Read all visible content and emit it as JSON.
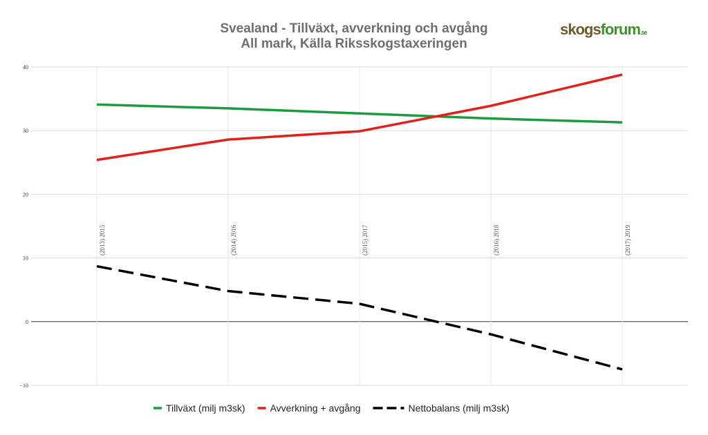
{
  "chart_data": {
    "type": "line",
    "title": "Svealand - Tillväxt, avverkning och avgång",
    "subtitle": "All mark, Källa Riksskogstaxeringen",
    "logo": [
      "skogs",
      "forum",
      ".se"
    ],
    "categories": [
      "(2013) 2015",
      "(2014) 2016",
      "(2015) 2017",
      "(2016) 2018",
      "(2017) 2019"
    ],
    "series": [
      {
        "name": "Tillväxt (milj m3sk)",
        "color": "#1e9a40",
        "dash": false,
        "values": [
          34.1,
          33.5,
          32.7,
          31.9,
          31.3
        ]
      },
      {
        "name": "Avverkning + avgång",
        "color": "#e0211c",
        "dash": false,
        "values": [
          25.4,
          28.6,
          29.9,
          33.9,
          38.8
        ]
      },
      {
        "name": "Nettobalans (milj m3sk)",
        "color": "#000000",
        "dash": true,
        "values": [
          8.7,
          4.8,
          2.8,
          -2.0,
          -7.5
        ]
      }
    ],
    "ylim": [
      -10,
      40
    ],
    "yticks": [
      {
        "value": -10,
        "label": "−10"
      },
      0,
      10,
      20,
      30,
      40
    ],
    "grid": true
  }
}
